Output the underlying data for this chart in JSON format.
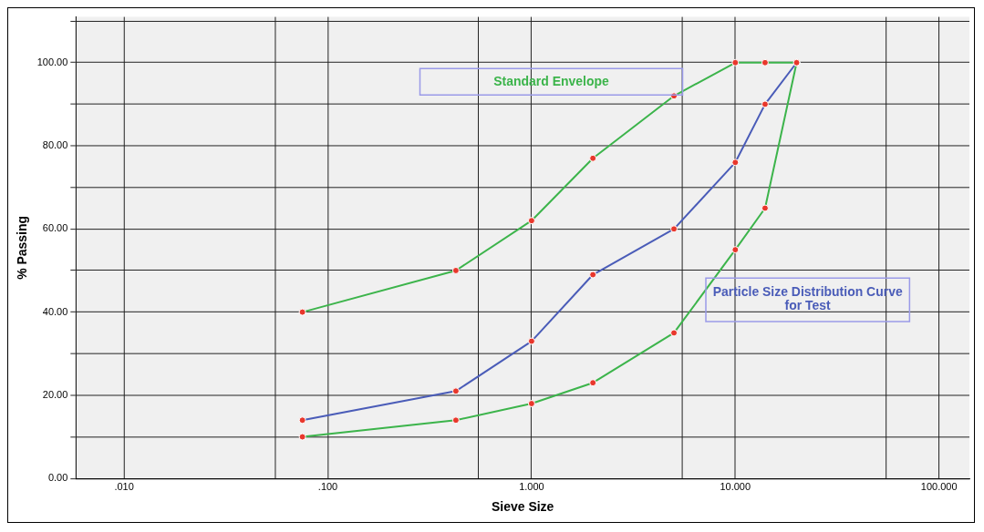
{
  "chart_data": {
    "type": "line",
    "xlabel": "Sieve Size",
    "ylabel": "% Passing",
    "log": "x",
    "grid": true,
    "marker": "circle",
    "line_style": "solid",
    "xlim": [
      0.0058,
      141
    ],
    "xticks": [
      {
        "value": 0.01,
        "label": ".010"
      },
      {
        "value": 0.055,
        "label": null
      },
      {
        "value": 0.1,
        "label": ".100"
      },
      {
        "value": 0.55,
        "label": null
      },
      {
        "value": 1,
        "label": "1.000"
      },
      {
        "value": 5.5,
        "label": null
      },
      {
        "value": 10,
        "label": "10.000"
      },
      {
        "value": 55,
        "label": null
      },
      {
        "value": 100,
        "label": "100.000"
      }
    ],
    "ylim": [
      0,
      111
    ],
    "yticks": [
      {
        "value": 0,
        "label": "0.00"
      },
      {
        "value": 10,
        "label": null
      },
      {
        "value": 20,
        "label": "20.00"
      },
      {
        "value": 30,
        "label": null
      },
      {
        "value": 40,
        "label": "40.00"
      },
      {
        "value": 50,
        "label": null
      },
      {
        "value": 60,
        "label": "60.00"
      },
      {
        "value": 70,
        "label": null
      },
      {
        "value": 80,
        "label": "80.00"
      },
      {
        "value": 90,
        "label": null
      },
      {
        "value": 100,
        "label": "100.00"
      },
      {
        "value": 110,
        "label": null
      }
    ],
    "x": [
      0.075,
      0.425,
      1,
      2,
      5,
      10,
      14,
      20
    ],
    "series": [
      {
        "name": "Standard Envelope",
        "color": "#3cb44b",
        "values": [
          40,
          50,
          62,
          77,
          92,
          100,
          100,
          100
        ]
      },
      {
        "name": "Particle Size Distribution Curve for Test",
        "color": "#4a5cb8",
        "values": [
          14,
          21,
          33,
          49,
          60,
          76,
          90,
          100
        ]
      },
      {
        "color": "#3cb44b",
        "values": [
          10,
          14,
          18,
          23,
          35,
          55,
          65,
          100
        ]
      }
    ]
  }
}
